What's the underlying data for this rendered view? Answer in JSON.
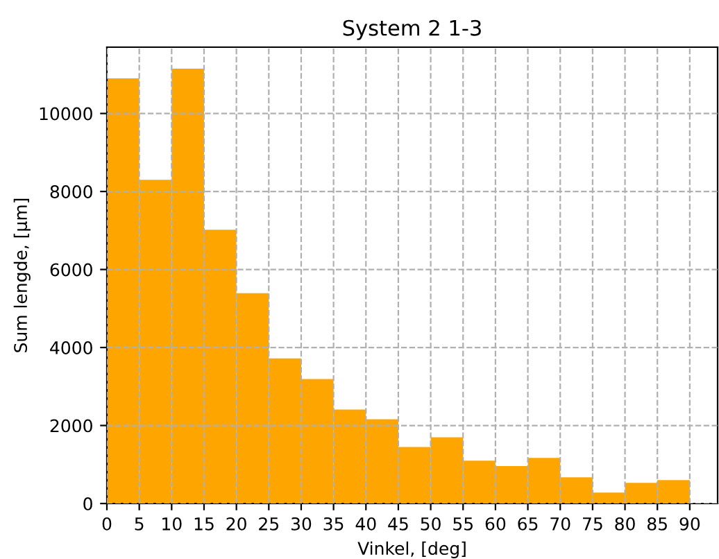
{
  "chart_data": {
    "type": "histogram",
    "title": "System 2 1-3",
    "xlabel": "Vinkel, [deg]",
    "ylabel": "Sum lengde, [µm]",
    "bins": [
      0,
      5,
      10,
      15,
      20,
      25,
      30,
      35,
      40,
      45,
      50,
      55,
      60,
      65,
      70,
      75,
      80,
      85,
      90
    ],
    "values": [
      10900,
      8300,
      11150,
      7020,
      5390,
      3720,
      3190,
      2410,
      2160,
      1450,
      1700,
      1100,
      960,
      1170,
      670,
      280,
      530,
      600
    ],
    "color": "#ffa500",
    "xlim": [
      0,
      94.3
    ],
    "ylim": [
      0,
      11700
    ],
    "xticks": [
      0,
      5,
      10,
      15,
      20,
      25,
      30,
      35,
      40,
      45,
      50,
      55,
      60,
      65,
      70,
      75,
      80,
      85,
      90
    ],
    "yticks": [
      0,
      2000,
      4000,
      6000,
      8000,
      10000
    ],
    "grid": true,
    "line_style": "dashed"
  }
}
